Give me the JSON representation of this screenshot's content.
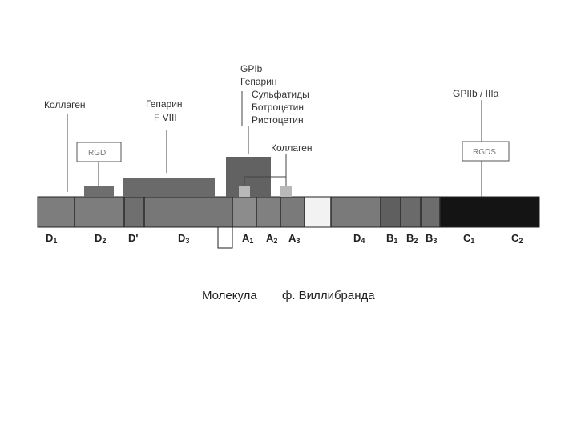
{
  "domains": [
    {
      "main": "D",
      "sub": "1"
    },
    {
      "main": "D",
      "sub": "2"
    },
    {
      "main": "D'",
      "sub": ""
    },
    {
      "main": "D",
      "sub": "3"
    },
    {
      "main": "A",
      "sub": "1"
    },
    {
      "main": "A",
      "sub": "2"
    },
    {
      "main": "A",
      "sub": "3"
    },
    {
      "main": "D",
      "sub": "4"
    },
    {
      "main": "B",
      "sub": "1"
    },
    {
      "main": "B",
      "sub": "2"
    },
    {
      "main": "B",
      "sub": "3"
    },
    {
      "main": "C",
      "sub": "1"
    },
    {
      "main": "C",
      "sub": "2"
    }
  ],
  "labels": {
    "collagen_left": "Коллаген",
    "heparin_fviii": [
      "Гепарин",
      "F VIII"
    ],
    "gpib_group": [
      "GPIb",
      "Гепарин",
      "Сульфатиды",
      "Ботроцетин",
      "Ристоцетин"
    ],
    "collagen_right": "Коллаген",
    "gpiib": "GPIIb / IIIa",
    "rgd": "RGD",
    "rgds": "RGDS"
  },
  "caption": {
    "left": "Молекула",
    "right": "ф. Виллибранда"
  }
}
